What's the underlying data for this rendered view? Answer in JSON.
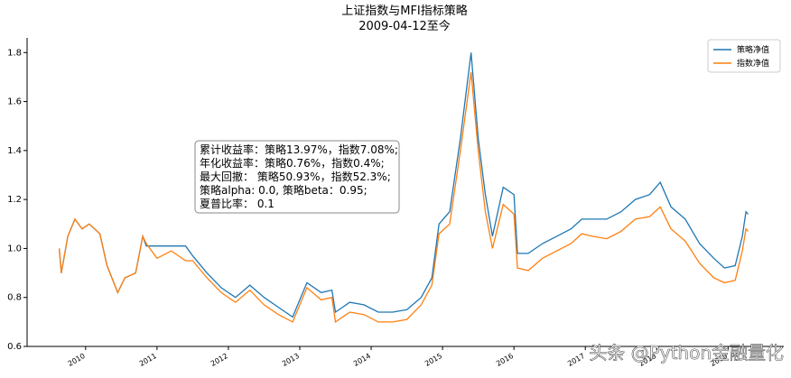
{
  "chart_data": {
    "type": "line",
    "title": "上证指数与MFI指标策略",
    "subtitle": "2009-04-12至今",
    "x": [
      2009.63,
      2009.66,
      2009.75,
      2009.85,
      2009.95,
      2010.05,
      2010.2,
      2010.3,
      2010.45,
      2010.55,
      2010.7,
      2010.8,
      2010.85,
      2011.0,
      2011.2,
      2011.4,
      2011.5,
      2011.7,
      2011.9,
      2012.1,
      2012.3,
      2012.5,
      2012.7,
      2012.9,
      2013.1,
      2013.3,
      2013.45,
      2013.5,
      2013.7,
      2013.9,
      2014.1,
      2014.3,
      2014.5,
      2014.7,
      2014.85,
      2014.95,
      2015.1,
      2015.25,
      2015.4,
      2015.5,
      2015.6,
      2015.7,
      2015.85,
      2016.0,
      2016.05,
      2016.2,
      2016.4,
      2016.6,
      2016.8,
      2016.95,
      2017.1,
      2017.3,
      2017.5,
      2017.7,
      2017.9,
      2018.05,
      2018.2,
      2018.4,
      2018.6,
      2018.8,
      2018.95,
      2019.1,
      2019.2,
      2019.25,
      2019.28
    ],
    "series": [
      {
        "name": "策略净值",
        "color": "#1f77b4",
        "values": [
          1.0,
          0.9,
          1.05,
          1.12,
          1.08,
          1.1,
          1.06,
          0.93,
          0.82,
          0.88,
          0.9,
          1.05,
          1.01,
          1.01,
          1.01,
          1.01,
          0.97,
          0.9,
          0.84,
          0.8,
          0.85,
          0.8,
          0.76,
          0.72,
          0.86,
          0.82,
          0.83,
          0.74,
          0.78,
          0.77,
          0.74,
          0.74,
          0.75,
          0.8,
          0.88,
          1.1,
          1.15,
          1.45,
          1.8,
          1.45,
          1.22,
          1.05,
          1.25,
          1.22,
          0.98,
          0.98,
          1.02,
          1.05,
          1.08,
          1.12,
          1.12,
          1.12,
          1.15,
          1.2,
          1.22,
          1.27,
          1.17,
          1.12,
          1.02,
          0.96,
          0.92,
          0.93,
          1.05,
          1.15,
          1.14
        ]
      },
      {
        "name": "指数净值",
        "color": "#ff7f0e",
        "values": [
          1.0,
          0.9,
          1.05,
          1.12,
          1.08,
          1.1,
          1.06,
          0.93,
          0.82,
          0.88,
          0.9,
          1.05,
          1.02,
          0.96,
          0.99,
          0.95,
          0.95,
          0.88,
          0.82,
          0.78,
          0.83,
          0.77,
          0.73,
          0.7,
          0.84,
          0.79,
          0.8,
          0.7,
          0.74,
          0.73,
          0.7,
          0.7,
          0.71,
          0.77,
          0.85,
          1.06,
          1.1,
          1.4,
          1.72,
          1.4,
          1.15,
          1.0,
          1.18,
          1.14,
          0.92,
          0.91,
          0.96,
          0.99,
          1.02,
          1.06,
          1.05,
          1.04,
          1.07,
          1.12,
          1.13,
          1.17,
          1.08,
          1.03,
          0.94,
          0.88,
          0.86,
          0.87,
          0.99,
          1.08,
          1.07
        ]
      }
    ],
    "xlim": [
      2009.18,
      2019.78
    ],
    "xticks": [
      2010,
      2011,
      2012,
      2013,
      2014,
      2015,
      2016,
      2017,
      2018,
      2019
    ],
    "ylim": [
      0.6,
      1.86
    ],
    "yticks": [
      0.6,
      0.8,
      {
        "value": 1,
        "label": "1.0"
      },
      1.2,
      1.4,
      1.6,
      1.8
    ],
    "legend": "upper right",
    "annotation": [
      "累计收益率：策略13.97%，指数7.08%;",
      "年化收益率：策略0.76%，指数0.4%;",
      "最大回撤：  策略50.93%，指数52.3%;",
      "策略alpha: 0.0, 策略beta：0.95;",
      "夏普比率：  0.1"
    ],
    "watermark": "头条 @Python金融量化"
  }
}
